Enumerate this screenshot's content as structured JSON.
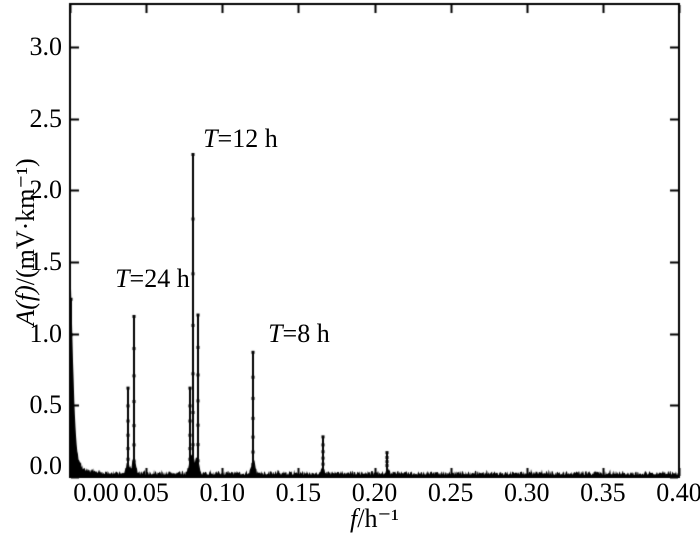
{
  "chart_data": {
    "type": "line",
    "title": "",
    "xlabel": {
      "var": "f",
      "rest": "/h⁻¹"
    },
    "ylabel": {
      "var": "A(f)",
      "rest": "/(mV·km⁻¹)"
    },
    "xlim": [
      0,
      0.4
    ],
    "ylim": [
      0,
      3.3
    ],
    "grid": false,
    "legend": "none",
    "line_color": "#000000",
    "background_color": "#ffffff",
    "x_ticks": [
      {
        "v": 0.0,
        "label": "0.00"
      },
      {
        "v": 0.05,
        "label": "0.05"
      },
      {
        "v": 0.1,
        "label": "0.10"
      },
      {
        "v": 0.15,
        "label": "0.15"
      },
      {
        "v": 0.2,
        "label": "0.20"
      },
      {
        "v": 0.25,
        "label": "0.25"
      },
      {
        "v": 0.3,
        "label": "0.30"
      },
      {
        "v": 0.35,
        "label": "0.35"
      },
      {
        "v": 0.4,
        "label": "0.40"
      }
    ],
    "y_ticks": [
      {
        "v": 0.0,
        "label": "0.0"
      },
      {
        "v": 0.5,
        "label": "0.5"
      },
      {
        "v": 1.0,
        "label": "1.0"
      },
      {
        "v": 1.5,
        "label": "1.5"
      },
      {
        "v": 2.0,
        "label": "2.0"
      },
      {
        "v": 2.5,
        "label": "2.5"
      },
      {
        "v": 3.0,
        "label": "3.0"
      }
    ],
    "peaks": [
      {
        "f": 0.0381,
        "a": 0.62
      },
      {
        "f": 0.042,
        "a": 1.12
      },
      {
        "f": 0.0788,
        "a": 0.62
      },
      {
        "f": 0.0807,
        "a": 2.25
      },
      {
        "f": 0.0838,
        "a": 1.13
      },
      {
        "f": 0.1203,
        "a": 0.87
      },
      {
        "f": 0.166,
        "a": 0.28
      },
      {
        "f": 0.2085,
        "a": 0.17
      }
    ],
    "dc_spike": {
      "f": 0.0006,
      "amp": 1.24,
      "col_width": 0.0026,
      "col_power": 1.6,
      "tail_amp": 0.2,
      "tail_decay": 0.005
    },
    "noise_floor": {
      "floor_min": 0.013,
      "floor_range": 0.03,
      "spike_chance": 0.05,
      "spike_add": 0.013,
      "seed": 7,
      "samples": 1000
    },
    "peak_base": {
      "height_factor": 0.12,
      "height_min": 0.03,
      "height_max": 0.1,
      "sigma": 0.0016
    },
    "annotations": [
      {
        "var": "T",
        "rest": "=24 h",
        "f": 0.0296,
        "v": 1.325
      },
      {
        "var": "T",
        "rest": "=12 h",
        "f": 0.0874,
        "v": 2.3
      },
      {
        "var": "T",
        "rest": "=8 h",
        "f": 0.1301,
        "v": 0.94
      }
    ]
  }
}
